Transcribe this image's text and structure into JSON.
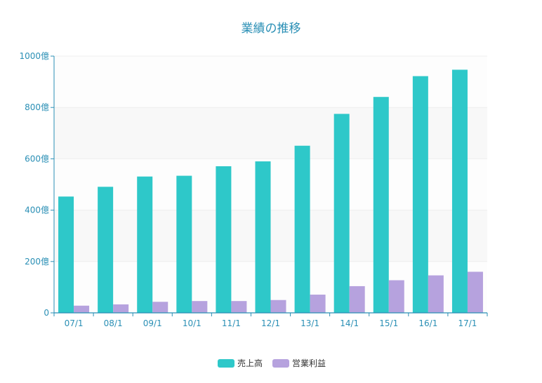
{
  "chart_data": {
    "type": "bar",
    "title": "業績の推移",
    "categories": [
      "07/1",
      "08/1",
      "09/1",
      "10/1",
      "11/1",
      "12/1",
      "13/1",
      "14/1",
      "15/1",
      "16/1",
      "17/1"
    ],
    "ylim": [
      0,
      1000
    ],
    "yticks": [
      {
        "value": 0,
        "label": "0"
      },
      {
        "value": 200,
        "label": "200億"
      },
      {
        "value": 400,
        "label": "400億"
      },
      {
        "value": 600,
        "label": "600億"
      },
      {
        "value": 800,
        "label": "800億"
      },
      {
        "value": 1000,
        "label": "1000億"
      }
    ],
    "series": [
      {
        "name": "売上高",
        "color": "#2ec8c9",
        "values": [
          453,
          491,
          531,
          534,
          571,
          590,
          651,
          775,
          841,
          922,
          947
        ]
      },
      {
        "name": "営業利益",
        "color": "#b6a2de",
        "values": [
          28,
          33,
          43,
          46,
          46,
          50,
          71,
          104,
          127,
          146,
          160
        ]
      }
    ],
    "legend": "bottom-center",
    "grid": true,
    "colors": {
      "axis": "#2a8fb5",
      "band": "#f8f8f8",
      "grid": "#eeeeee"
    }
  }
}
